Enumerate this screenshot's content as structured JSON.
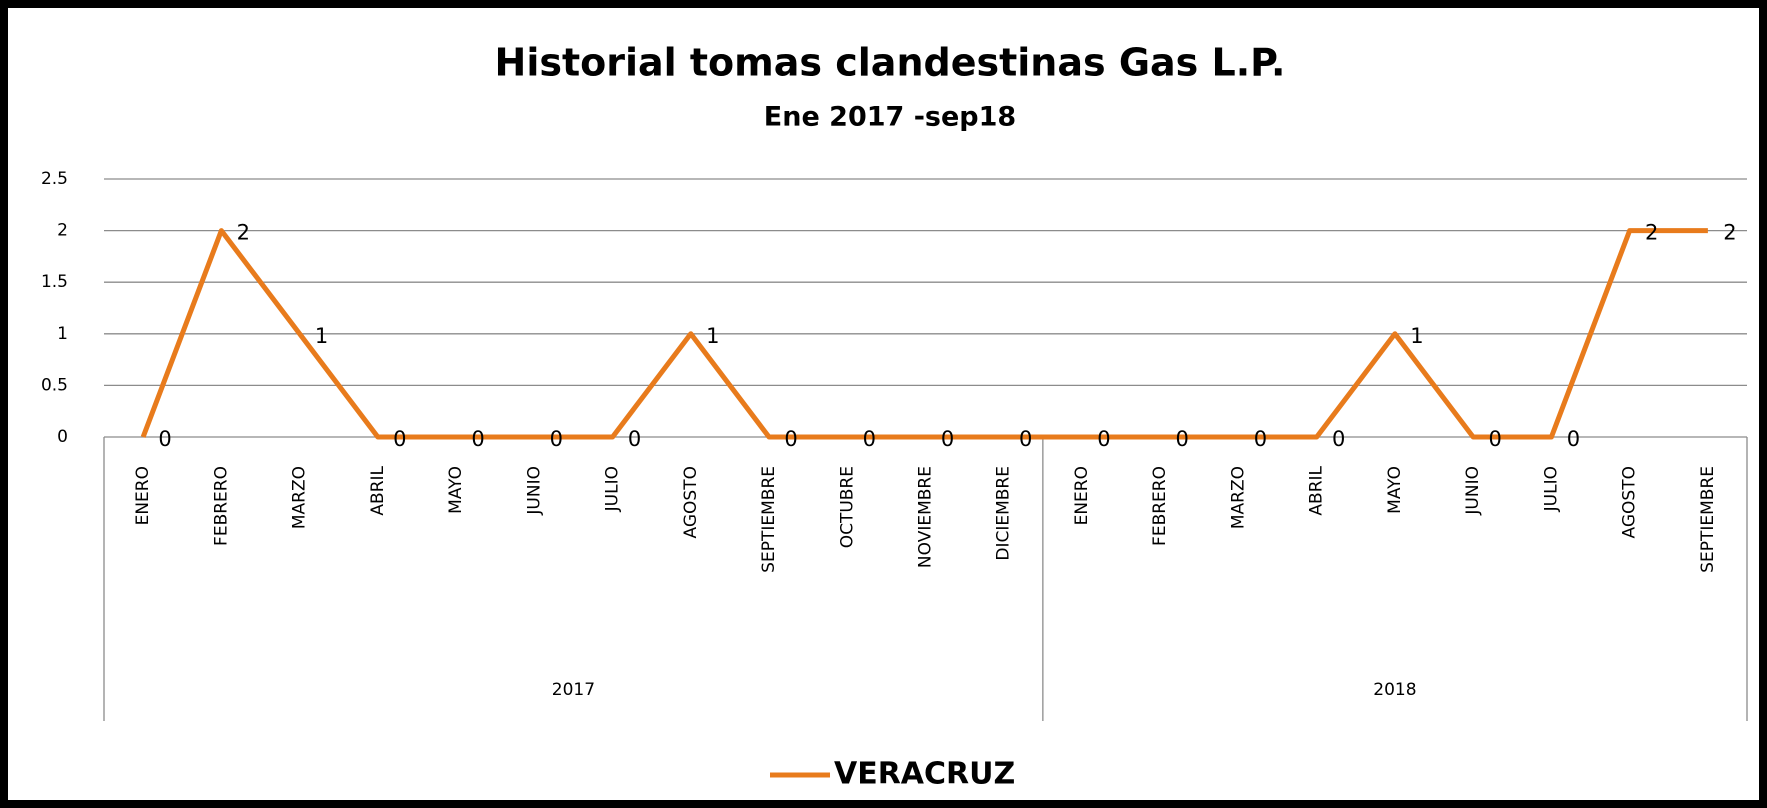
{
  "chart_data": {
    "type": "line",
    "title": "Historial tomas clandestinas Gas L.P.",
    "subtitle": "Ene 2017 -sep18",
    "groups": [
      {
        "label": "2017",
        "categories": [
          "ENERO",
          "FEBRERO",
          "MARZO",
          "ABRIL",
          "MAYO",
          "JUNIO",
          "JULIO",
          "AGOSTO",
          "SEPTIEMBRE",
          "OCTUBRE",
          "NOVIEMBRE",
          "DICIEMBRE"
        ]
      },
      {
        "label": "2018",
        "categories": [
          "ENERO",
          "FEBRERO",
          "MARZO",
          "ABRIL",
          "MAYO",
          "JUNIO",
          "JULIO",
          "AGOSTO",
          "SEPTIEMBRE"
        ]
      }
    ],
    "series": [
      {
        "name": "VERACRUZ",
        "color": "#e87b1c",
        "values": [
          0,
          2,
          1,
          0,
          0,
          0,
          0,
          1,
          0,
          0,
          0,
          0,
          0,
          0,
          0,
          0,
          1,
          0,
          0,
          2,
          2
        ]
      }
    ],
    "ylim": [
      0,
      2.5
    ],
    "yticks": [
      0,
      0.5,
      1,
      1.5,
      2,
      2.5
    ],
    "grid": true,
    "legend": "bottom"
  }
}
